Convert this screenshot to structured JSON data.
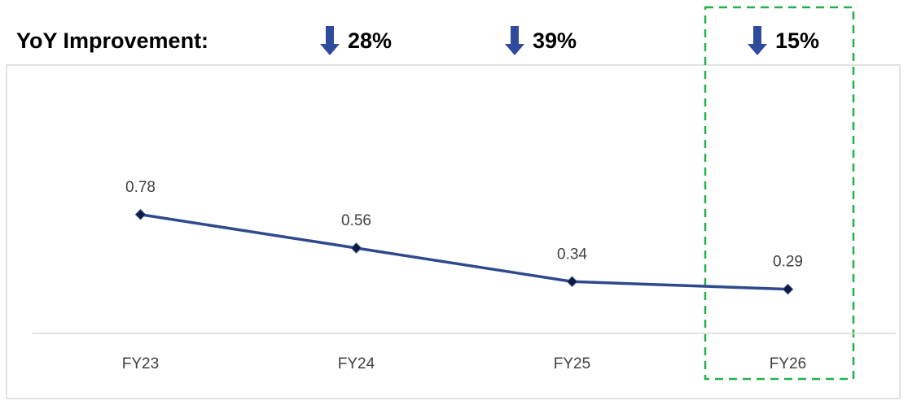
{
  "chart_data": {
    "type": "line",
    "header": "YoY Improvement:",
    "annotations": [
      "28%",
      "39%",
      "15%"
    ],
    "categories": [
      "FY23",
      "FY24",
      "FY25",
      "FY26"
    ],
    "values": [
      0.78,
      0.56,
      0.34,
      0.29
    ],
    "color": "#2e4a8e",
    "ylim": [
      0,
      1.6
    ]
  }
}
